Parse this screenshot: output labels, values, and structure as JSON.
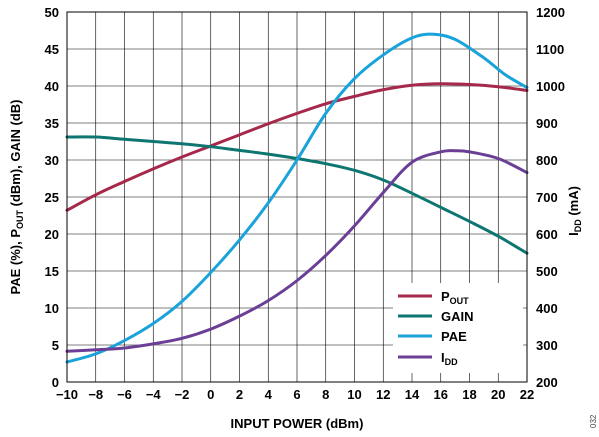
{
  "chart_data": {
    "type": "line",
    "xlabel": "INPUT POWER (dBm)",
    "ylabel_left": {
      "p1": "PAE (%), P",
      "sub1": "OUT",
      "p2": " (dBm), GAIN (dB)"
    },
    "ylabel_right": {
      "p1": "I",
      "sub1": "DD",
      "p2": " (mA)"
    },
    "xlim": [
      -10,
      22
    ],
    "ylim_left": [
      0,
      50
    ],
    "ylim_right": [
      200,
      1200
    ],
    "x_ticks": [
      -10,
      -8,
      -6,
      -4,
      -2,
      0,
      2,
      4,
      6,
      8,
      10,
      12,
      14,
      16,
      18,
      20,
      22
    ],
    "x_tick_labels": [
      "−10",
      "−8",
      "−6",
      "−4",
      "−2",
      "0",
      "2",
      "4",
      "6",
      "8",
      "10",
      "12",
      "14",
      "16",
      "18",
      "20",
      "22"
    ],
    "y_left_ticks": [
      0,
      5,
      10,
      15,
      20,
      25,
      30,
      35,
      40,
      45,
      50
    ],
    "y_right_ticks": [
      200,
      300,
      400,
      500,
      600,
      700,
      800,
      900,
      1000,
      1100,
      1200
    ],
    "grid": true,
    "legend_position": "bottom-right",
    "series": [
      {
        "key": "pout",
        "name": {
          "p1": "P",
          "sub1": "OUT"
        },
        "axis": "left",
        "color": "#a6284a",
        "x": [
          -10,
          -8,
          -6,
          -4,
          -2,
          0,
          2,
          4,
          6,
          8,
          10,
          12,
          14,
          16,
          18,
          20,
          22
        ],
        "values": [
          23.2,
          25.3,
          27.1,
          28.8,
          30.4,
          31.9,
          33.4,
          34.9,
          36.3,
          37.6,
          38.6,
          39.5,
          40.1,
          40.3,
          40.2,
          39.9,
          39.4
        ]
      },
      {
        "key": "gain",
        "name": {
          "p1": "GAIN",
          "sub1": ""
        },
        "axis": "left",
        "color": "#0e7670",
        "x": [
          -10,
          -8,
          -6,
          -4,
          -2,
          0,
          2,
          4,
          6,
          8,
          10,
          12,
          14,
          16,
          18,
          20,
          22
        ],
        "values": [
          33.1,
          33.1,
          32.8,
          32.5,
          32.2,
          31.8,
          31.3,
          30.8,
          30.2,
          29.5,
          28.6,
          27.3,
          25.5,
          23.6,
          21.7,
          19.7,
          17.4
        ]
      },
      {
        "key": "pae",
        "name": {
          "p1": "PAE",
          "sub1": ""
        },
        "axis": "left",
        "color": "#1aa3da",
        "x": [
          -10,
          -8,
          -6,
          -4,
          -2,
          0,
          2,
          4,
          6,
          8,
          10,
          12,
          14,
          15.5,
          17,
          19,
          20.5,
          22
        ],
        "values": [
          2.7,
          3.8,
          5.6,
          7.9,
          10.9,
          14.8,
          19.2,
          24.2,
          30.0,
          36.3,
          41.0,
          44.2,
          46.5,
          47.0,
          46.3,
          43.8,
          41.5,
          39.8
        ]
      },
      {
        "key": "idd",
        "name": {
          "p1": "I",
          "sub1": "DD"
        },
        "axis": "right",
        "color": "#6b3f96",
        "x": [
          -10,
          -8,
          -6,
          -4,
          -2,
          0,
          2,
          4,
          6,
          8,
          10,
          12,
          14,
          16,
          17,
          18,
          20,
          22
        ],
        "values": [
          283,
          287,
          292,
          303,
          318,
          343,
          378,
          420,
          474,
          542,
          622,
          712,
          794,
          822,
          825,
          822,
          804,
          766
        ]
      }
    ]
  },
  "figure_id": "032"
}
